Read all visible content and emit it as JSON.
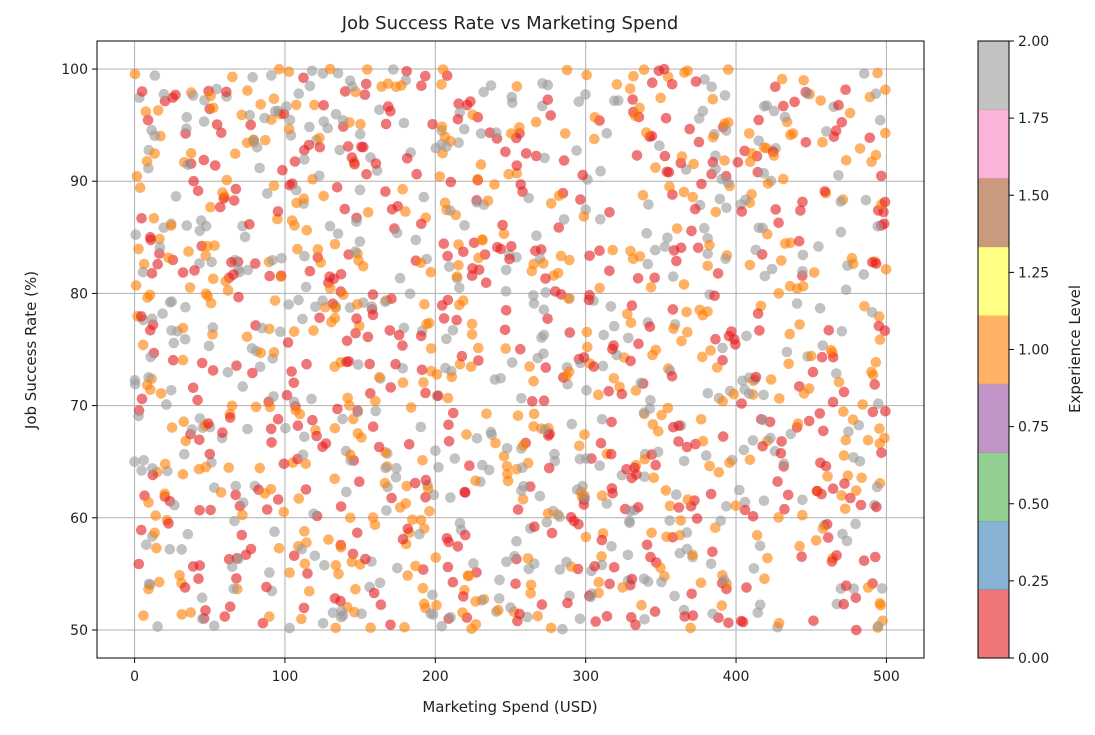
{
  "chart_data": {
    "type": "scatter",
    "title": "Job Success Rate vs Marketing Spend",
    "xlabel": "Marketing Spend (USD)",
    "ylabel": "Job Success Rate (%)",
    "xlim": [
      -25,
      525
    ],
    "ylim": [
      47.5,
      102.5
    ],
    "x_ticks": [
      0,
      100,
      200,
      300,
      400,
      500
    ],
    "y_ticks": [
      50,
      60,
      70,
      80,
      90,
      100
    ],
    "grid": true,
    "point_count": 1500,
    "point_alpha": 0.6,
    "x_range": [
      0,
      500
    ],
    "y_range": [
      50,
      100
    ],
    "color_levels": [
      0,
      1,
      2
    ],
    "level_colors": {
      "0": "#e41a1c",
      "1": "#ff7f00",
      "2": "#999999"
    },
    "colorbar": {
      "label": "Experience Level",
      "colormap": "Set1",
      "range": [
        0,
        2
      ],
      "ticks": [
        "0.00",
        "0.25",
        "0.50",
        "0.75",
        "1.00",
        "1.25",
        "1.50",
        "1.75",
        "2.00"
      ],
      "colors": [
        "#e41a1c",
        "#377eb8",
        "#4daf4a",
        "#984ea3",
        "#ff7f00",
        "#ffff33",
        "#a65628",
        "#f781bf",
        "#999999"
      ]
    },
    "sample_points": [
      {
        "x": 5,
        "y": 98,
        "level": 0
      },
      {
        "x": 130,
        "y": 100,
        "level": 1
      },
      {
        "x": 250,
        "y": 52,
        "level": 2
      },
      {
        "x": 480,
        "y": 50,
        "level": 0
      },
      {
        "x": 490,
        "y": 73,
        "level": 1
      },
      {
        "x": 0,
        "y": 65,
        "level": 2
      }
    ]
  }
}
